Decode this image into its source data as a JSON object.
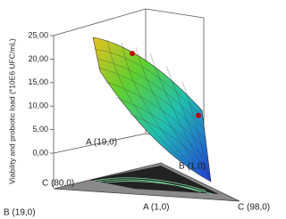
{
  "chart_data": {
    "type": "mixture-surface",
    "y_label": "Viability and probiotic load (*10E6 UFC/mL)",
    "ylim": [
      0,
      25
    ],
    "yticks": [
      {
        "value": 0,
        "label": "0,00"
      },
      {
        "value": 5,
        "label": "5,00"
      },
      {
        "value": 10,
        "label": "10,00"
      },
      {
        "value": 15,
        "label": "15,00"
      },
      {
        "value": 20,
        "label": "20,00"
      },
      {
        "value": 25,
        "label": "25,00"
      }
    ],
    "vertex_labels": [
      "A (19,0)",
      "B (1,0)",
      "C (80,0)",
      "B (19,0)",
      "A (1,0)",
      "C (98,0)"
    ],
    "design_points": {
      "color": "#c00000",
      "values": [
        21.2,
        8.0
      ]
    }
  }
}
